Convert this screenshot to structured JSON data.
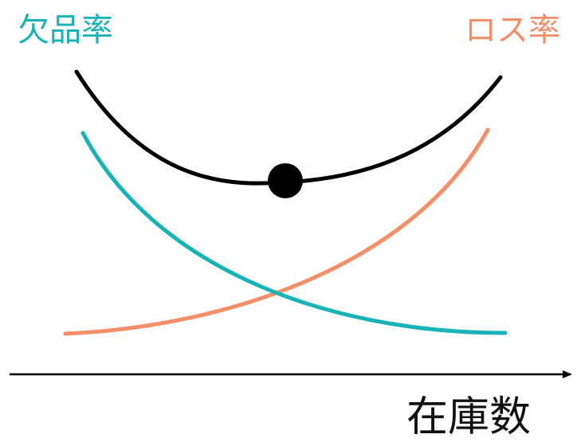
{
  "labels": {
    "shortage_rate": "欠品率",
    "loss_rate": "ロス率",
    "x_axis": "在庫数"
  },
  "colors": {
    "shortage": "#17b3b7",
    "loss": "#f58f6a",
    "total": "#000000",
    "axis": "#000000"
  },
  "curves": [
    {
      "name": "shortage-rate-curve",
      "color_key": "shortage"
    },
    {
      "name": "loss-rate-curve",
      "color_key": "loss"
    },
    {
      "name": "total-cost-curve",
      "color_key": "total"
    }
  ]
}
